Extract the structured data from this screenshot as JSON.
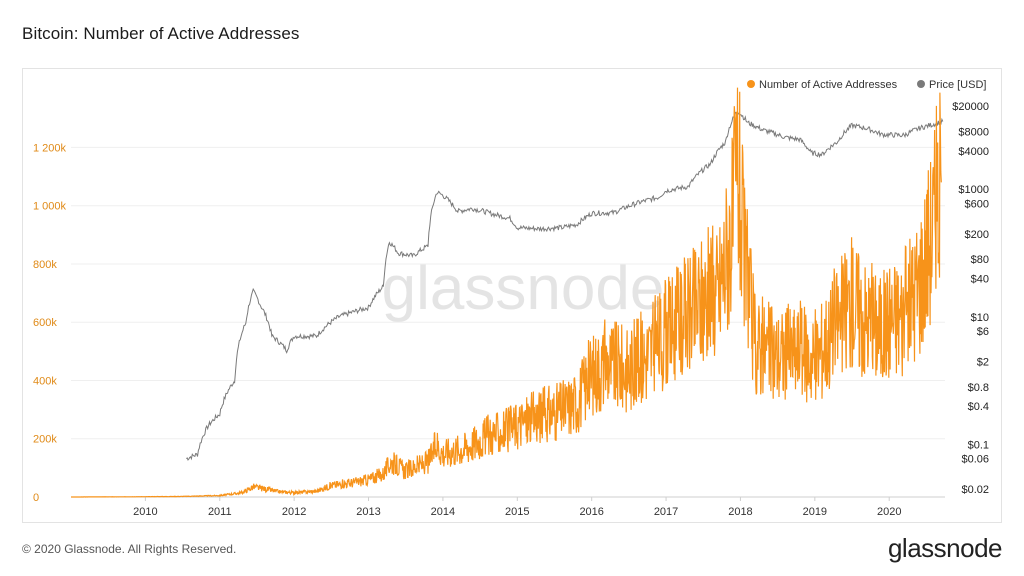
{
  "page": {
    "title": "Bitcoin: Number of Active Addresses",
    "footer": "© 2020 Glassnode. All Rights Reserved.",
    "logo_text": "glassnode",
    "watermark": "glassnode"
  },
  "colors": {
    "active_addresses": "#f7931a",
    "price": "#7a7a7a",
    "grid": "#efefef",
    "left_axis_text": "#e08a17"
  },
  "chart_data": {
    "type": "line",
    "title": "Bitcoin: Number of Active Addresses",
    "legend": [
      "Number of Active Addresses",
      "Price [USD]"
    ],
    "legend_position": "top-right",
    "x_ticks": [
      "2010",
      "2011",
      "2012",
      "2013",
      "2014",
      "2015",
      "2016",
      "2017",
      "2018",
      "2019",
      "2020"
    ],
    "x_range": [
      2009.0,
      2020.75
    ],
    "y_left": {
      "label": "",
      "ticks": [
        "0",
        "200k",
        "400k",
        "600k",
        "800k",
        "1 000k",
        "1 200k"
      ],
      "tick_values": [
        0,
        200000,
        400000,
        600000,
        800000,
        1000000,
        1200000
      ],
      "range": [
        0,
        1380000
      ]
    },
    "y_right": {
      "label": "",
      "scale": "log",
      "ticks": [
        "$0.02",
        "$0.06",
        "$0.1",
        "$0.4",
        "$0.8",
        "$2",
        "$6",
        "$10",
        "$40",
        "$80",
        "$200",
        "$600",
        "$1000",
        "$4000",
        "$8000",
        "$20000"
      ],
      "tick_values": [
        0.02,
        0.06,
        0.1,
        0.4,
        0.8,
        2,
        6,
        10,
        40,
        80,
        200,
        600,
        1000,
        4000,
        8000,
        20000
      ],
      "range": [
        0.015,
        30000
      ]
    },
    "grid": true,
    "series": [
      {
        "name": "Number of Active Addresses",
        "axis": "left",
        "x": [
          2009.0,
          2010.0,
          2010.5,
          2011.0,
          2011.3,
          2011.45,
          2011.6,
          2011.8,
          2012.0,
          2012.3,
          2012.5,
          2012.8,
          2013.0,
          2013.2,
          2013.3,
          2013.5,
          2013.8,
          2013.92,
          2014.0,
          2014.3,
          2014.6,
          2014.9,
          2015.0,
          2015.3,
          2015.6,
          2015.8,
          2016.0,
          2016.2,
          2016.5,
          2016.8,
          2017.0,
          2017.3,
          2017.5,
          2017.7,
          2017.9,
          2017.96,
          2018.05,
          2018.2,
          2018.5,
          2018.8,
          2019.0,
          2019.2,
          2019.5,
          2019.7,
          2019.9,
          2020.0,
          2020.2,
          2020.4,
          2020.55,
          2020.7
        ],
        "y": [
          0,
          1000,
          2000,
          5000,
          15000,
          35000,
          28000,
          18000,
          15000,
          20000,
          40000,
          50000,
          60000,
          80000,
          120000,
          90000,
          120000,
          180000,
          150000,
          170000,
          210000,
          230000,
          250000,
          280000,
          300000,
          330000,
          420000,
          460000,
          440000,
          500000,
          560000,
          620000,
          680000,
          700000,
          950000,
          1150000,
          820000,
          520000,
          490000,
          500000,
          480000,
          560000,
          680000,
          610000,
          580000,
          620000,
          630000,
          740000,
          900000,
          1080000
        ]
      },
      {
        "name": "Price [USD]",
        "axis": "right",
        "x": [
          2010.55,
          2010.7,
          2010.85,
          2011.0,
          2011.2,
          2011.35,
          2011.45,
          2011.55,
          2011.7,
          2011.9,
          2012.0,
          2012.3,
          2012.6,
          2012.9,
          2013.0,
          2013.2,
          2013.28,
          2013.4,
          2013.6,
          2013.8,
          2013.92,
          2014.0,
          2014.2,
          2014.4,
          2014.7,
          2014.9,
          2015.0,
          2015.3,
          2015.6,
          2015.8,
          2016.0,
          2016.3,
          2016.6,
          2016.9,
          2017.0,
          2017.3,
          2017.6,
          2017.8,
          2017.96,
          2018.1,
          2018.3,
          2018.6,
          2018.8,
          2018.95,
          2019.1,
          2019.3,
          2019.5,
          2019.7,
          2019.9,
          2020.2,
          2020.4,
          2020.6,
          2020.72
        ],
        "y": [
          0.06,
          0.07,
          0.2,
          0.3,
          1.0,
          8,
          25,
          15,
          5,
          3,
          5,
          5,
          10,
          13,
          14,
          30,
          150,
          100,
          90,
          130,
          900,
          800,
          450,
          500,
          400,
          350,
          250,
          240,
          250,
          280,
          420,
          430,
          600,
          750,
          950,
          1100,
          2500,
          5500,
          17000,
          11000,
          8500,
          6500,
          6000,
          3700,
          3500,
          5500,
          10000,
          9000,
          7200,
          7000,
          9000,
          10500,
          11500
        ]
      }
    ]
  }
}
